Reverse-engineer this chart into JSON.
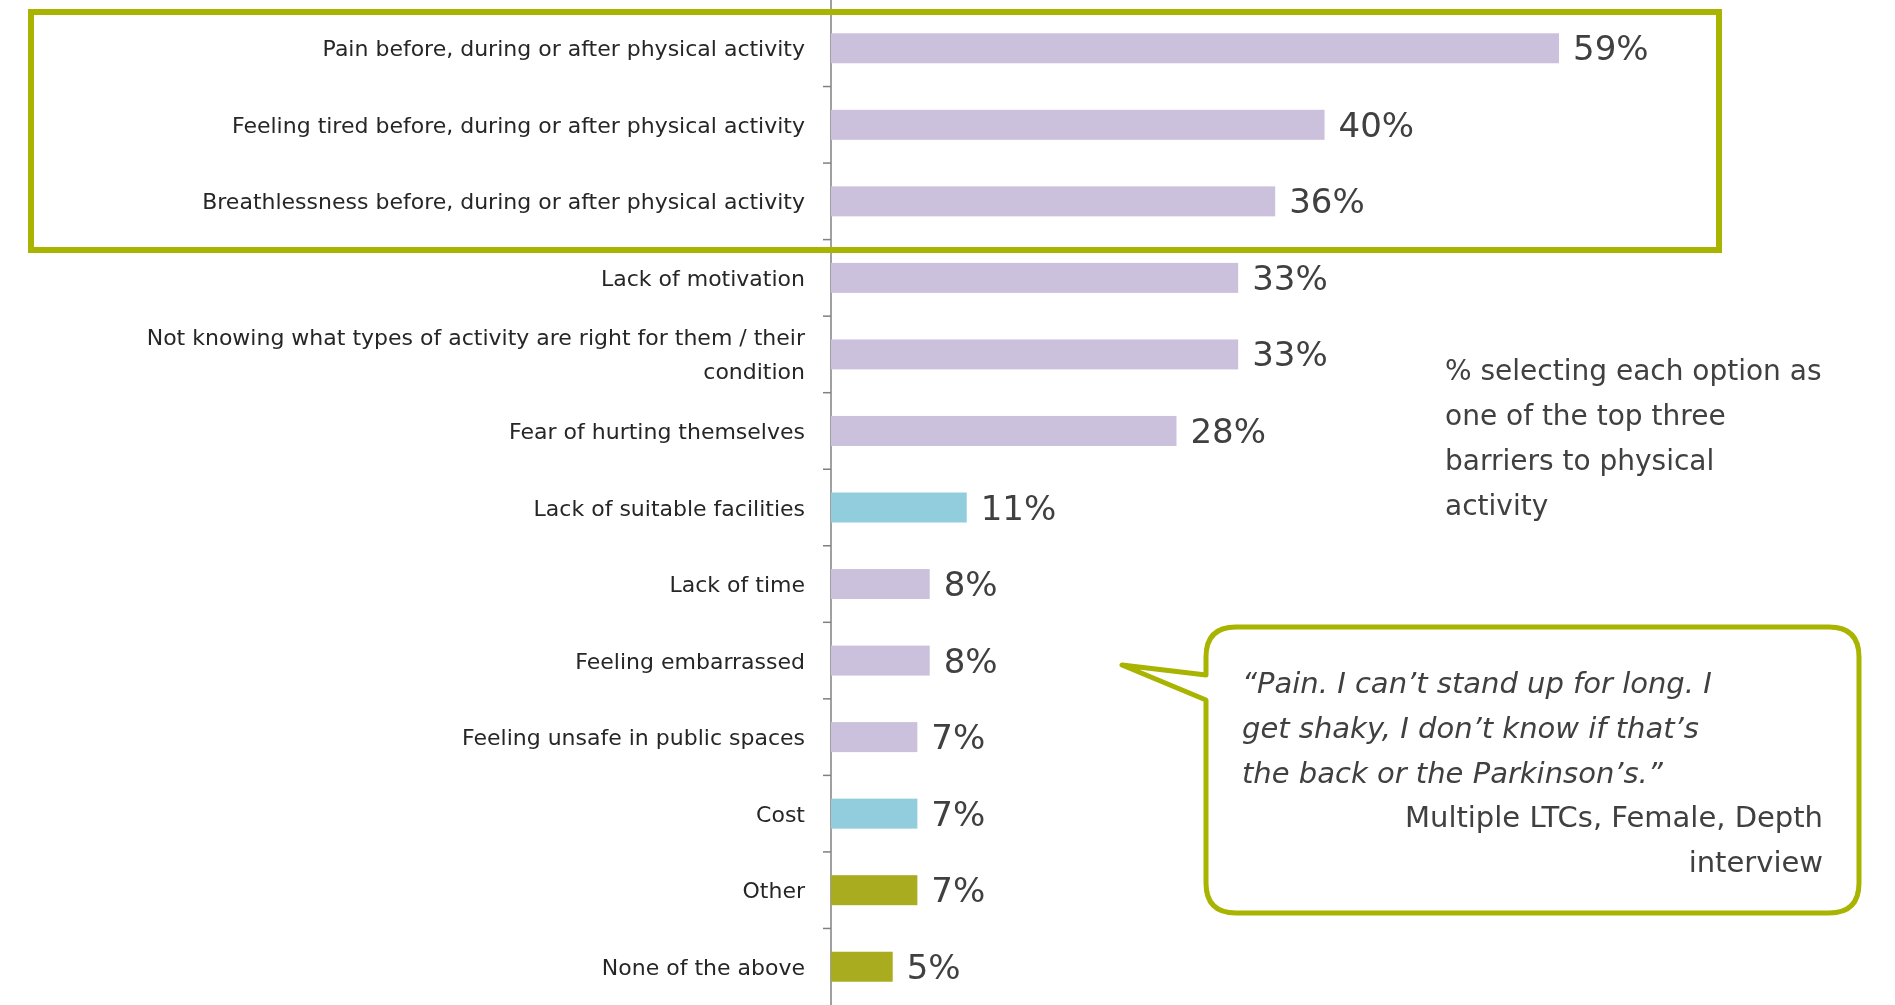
{
  "chart_data": {
    "type": "bar",
    "orientation": "horizontal",
    "categories": [
      "Pain before, during or after physical activity",
      "Feeling tired before, during or after physical activity",
      "Breathlessness before, during or after physical activity",
      "Lack of motivation",
      "Not knowing what types of activity are right for them / their condition",
      "Fear of hurting themselves",
      "Lack of suitable facilities",
      "Lack of time",
      "Feeling embarrassed",
      "Feeling unsafe in public spaces",
      "Cost",
      "Other",
      "None of the above"
    ],
    "values": [
      59,
      40,
      36,
      33,
      33,
      28,
      11,
      8,
      8,
      7,
      7,
      7,
      5
    ],
    "value_labels": [
      "59%",
      "40%",
      "36%",
      "33%",
      "33%",
      "28%",
      "11%",
      "8%",
      "8%",
      "7%",
      "7%",
      "7%",
      "5%"
    ],
    "colors": [
      "#ccc1dd",
      "#ccc1dd",
      "#ccc1dd",
      "#ccc1dd",
      "#ccc1dd",
      "#ccc1dd",
      "#92cddd",
      "#ccc1dd",
      "#ccc1dd",
      "#ccc1dd",
      "#92cddd",
      "#a9ac1f",
      "#a9ac1f"
    ],
    "annotations": [
      "% selecting each option as one of the top three barriers to physical activity",
      "“Pain. I can’t stand up for long.  I get shaky, I don’t know if that’s the back or the Parkinson’s.”",
      "Multiple LTCs, Female, Depth interview"
    ]
  }
}
